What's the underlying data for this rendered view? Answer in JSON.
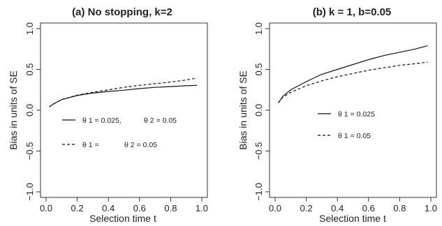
{
  "chart_data": [
    {
      "type": "line",
      "title": "(a) No stopping, k=2",
      "xlabel": "Selection time t",
      "ylabel": "Bias in units of SE",
      "xlim": [
        0,
        1
      ],
      "ylim": [
        -1,
        1
      ],
      "xticks": [
        "0.0",
        "0.2",
        "0.4",
        "0.6",
        "0.8",
        "1.0"
      ],
      "yticks": [
        "−1.0",
        "−0.5",
        "0.0",
        "0.5",
        "1.0"
      ],
      "grid": false,
      "series": [
        {
          "name": "θ 1 = 0.025,   θ 2 = 0.05",
          "legend_parts": [
            "θ 1 = 0.025,",
            "θ 2 = 0.05"
          ],
          "style": "solid",
          "x": [
            0.02,
            0.05,
            0.1,
            0.2,
            0.3,
            0.4,
            0.5,
            0.6,
            0.7,
            0.8,
            0.9,
            0.97
          ],
          "y": [
            0.04,
            0.08,
            0.13,
            0.18,
            0.21,
            0.23,
            0.245,
            0.265,
            0.28,
            0.29,
            0.3,
            0.305
          ]
        },
        {
          "name": "θ 1 = θ 2 = 0.05",
          "legend_parts": [
            "θ 1 =",
            "θ 2 = 0.05"
          ],
          "style": "dashed",
          "x": [
            0.02,
            0.05,
            0.1,
            0.2,
            0.3,
            0.4,
            0.5,
            0.6,
            0.7,
            0.8,
            0.9,
            0.97
          ],
          "y": [
            0.04,
            0.08,
            0.13,
            0.185,
            0.22,
            0.25,
            0.28,
            0.305,
            0.325,
            0.345,
            0.37,
            0.395
          ]
        }
      ]
    },
    {
      "type": "line",
      "title": "(b) k = 1, b=0.05",
      "xlabel": "Selection time t",
      "ylabel": "Bias in units of SE",
      "xlim": [
        0,
        1
      ],
      "ylim": [
        -1,
        1
      ],
      "xticks": [
        "0.0",
        "0.2",
        "0.4",
        "0.6",
        "0.8",
        "1.0"
      ],
      "yticks": [
        "−1.0",
        "−0.5",
        "0.0",
        "0.5",
        "1.0"
      ],
      "grid": false,
      "series": [
        {
          "name": "θ 1 = 0.025",
          "legend_parts": [
            "θ 1 = 0.025"
          ],
          "style": "solid",
          "x": [
            0.02,
            0.05,
            0.1,
            0.2,
            0.3,
            0.4,
            0.5,
            0.6,
            0.7,
            0.8,
            0.9,
            0.98
          ],
          "y": [
            0.09,
            0.17,
            0.25,
            0.35,
            0.44,
            0.5,
            0.56,
            0.62,
            0.67,
            0.71,
            0.75,
            0.79
          ]
        },
        {
          "name": "θ 1 = 0.05",
          "legend_parts": [
            "θ 1 = 0.05"
          ],
          "style": "dashed",
          "x": [
            0.02,
            0.05,
            0.1,
            0.2,
            0.3,
            0.4,
            0.5,
            0.6,
            0.7,
            0.8,
            0.9,
            0.98
          ],
          "y": [
            0.09,
            0.16,
            0.22,
            0.3,
            0.36,
            0.41,
            0.45,
            0.49,
            0.52,
            0.55,
            0.57,
            0.59
          ]
        }
      ]
    }
  ]
}
